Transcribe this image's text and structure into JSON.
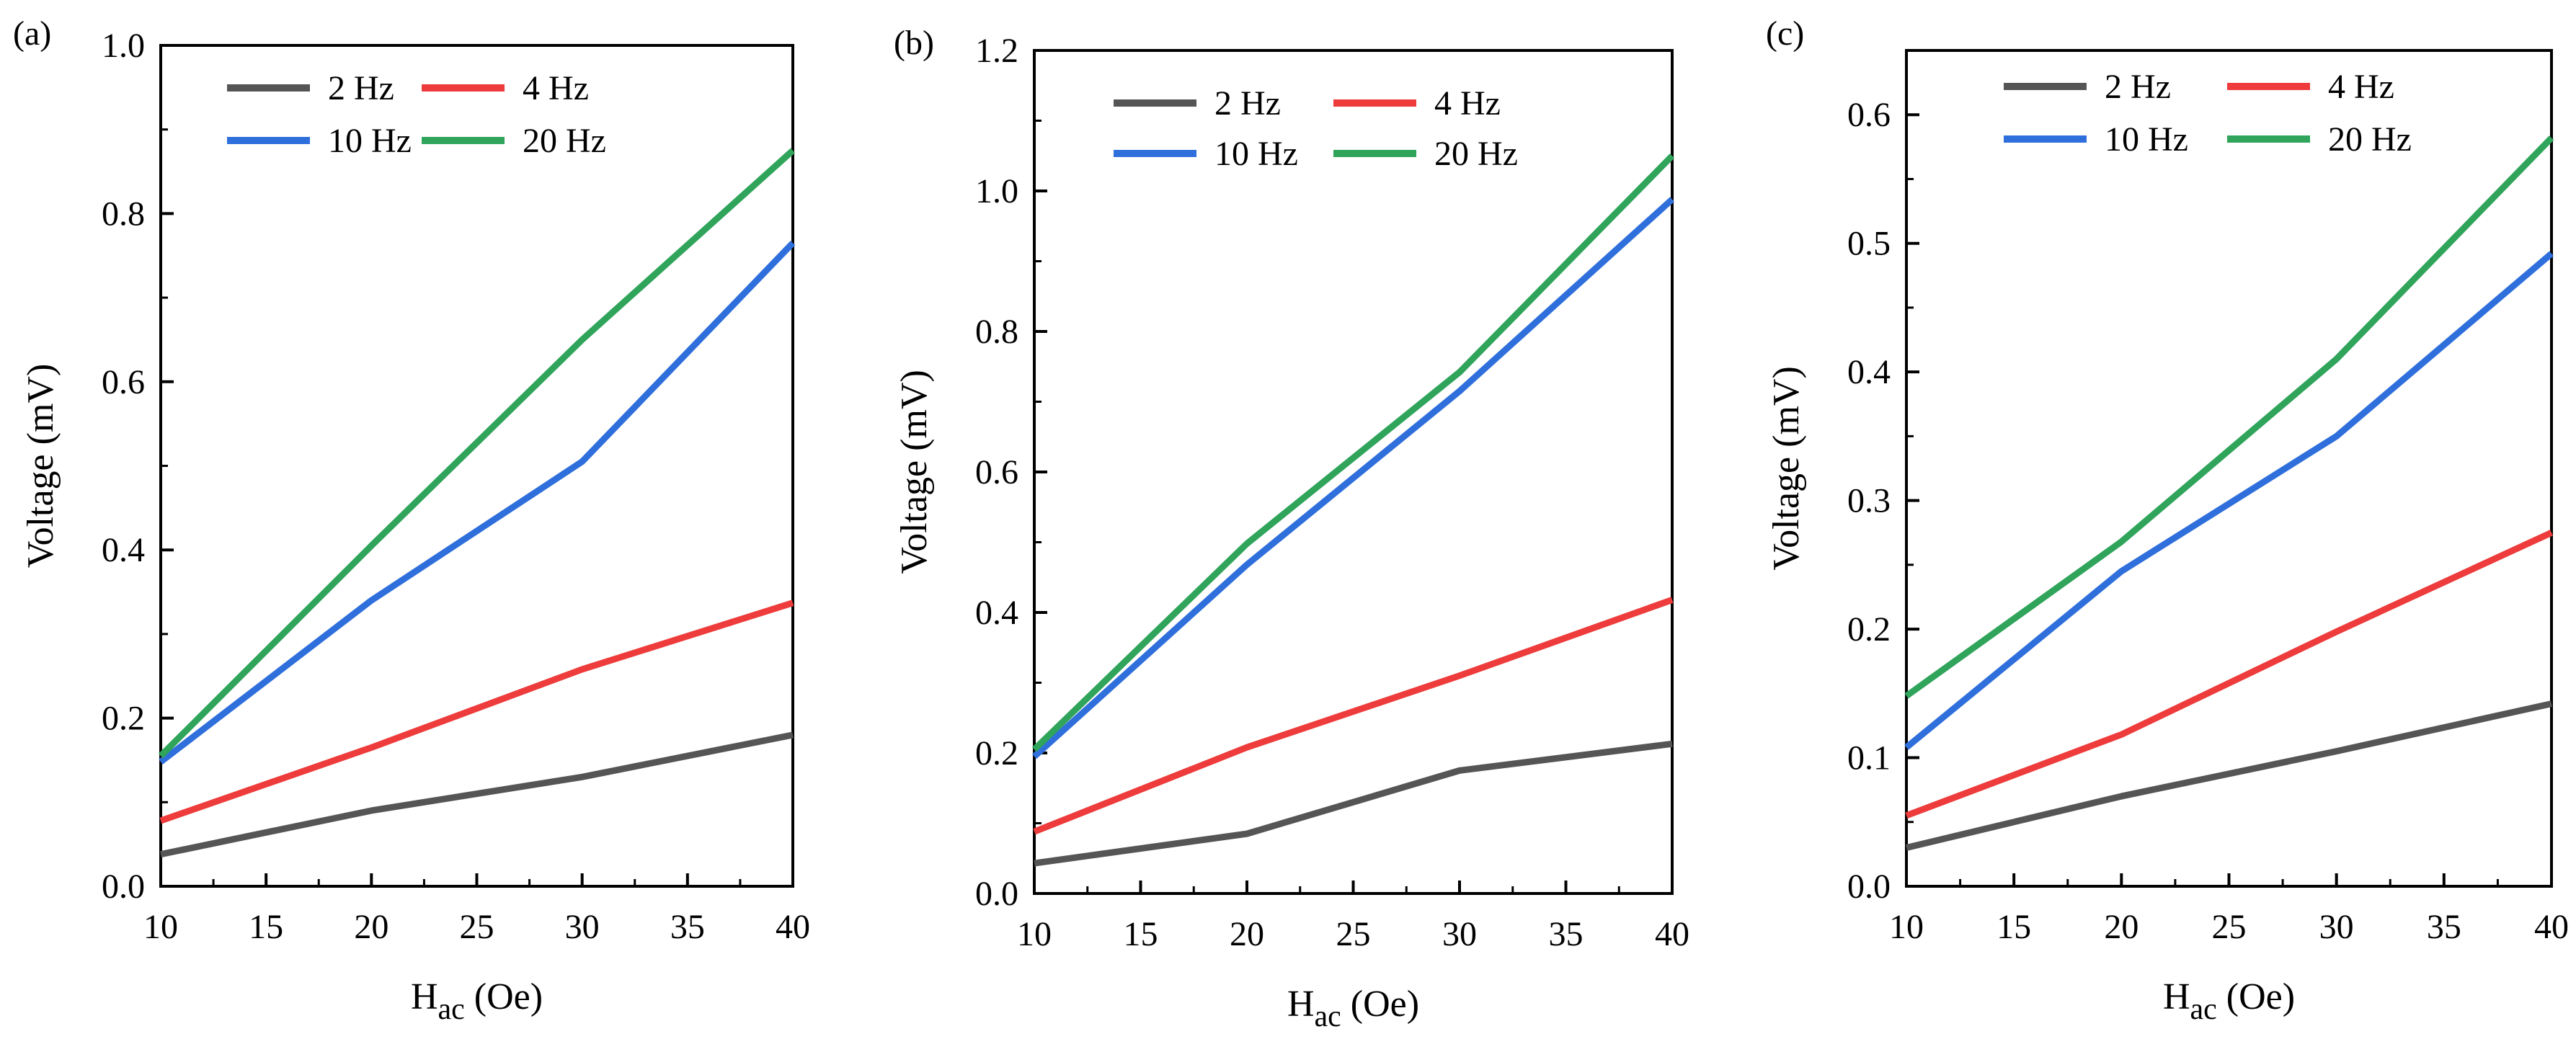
{
  "colors": {
    "2 Hz": "#555555",
    "4 Hz": "#ee3b3b",
    "10 Hz": "#2f6fdc",
    "20 Hz": "#2fa45a",
    "axis": "#000000"
  },
  "chart_data": [
    {
      "panel": "(a)",
      "type": "line",
      "xlabel": "H",
      "xlabel_sub": "ac",
      "xlabel_unit": " (Oe)",
      "ylabel": "Voltage (mV)",
      "xlim": [
        10,
        40
      ],
      "ylim": [
        0,
        1.0
      ],
      "xticks": [
        10,
        15,
        20,
        25,
        30,
        35,
        40
      ],
      "yticks": [
        0.0,
        0.2,
        0.4,
        0.6,
        0.8,
        1.0
      ],
      "ytick_labels": [
        "0.0",
        "0.2",
        "0.4",
        "0.6",
        "0.8",
        "1.0"
      ],
      "legend_position": "top-left",
      "series": [
        {
          "name": "2 Hz",
          "x": [
            10,
            20,
            30,
            40
          ],
          "values": [
            0.038,
            0.09,
            0.13,
            0.18
          ]
        },
        {
          "name": "4 Hz",
          "x": [
            10,
            20,
            30,
            40
          ],
          "values": [
            0.078,
            0.165,
            0.258,
            0.337
          ]
        },
        {
          "name": "10 Hz",
          "x": [
            10,
            20,
            30,
            40
          ],
          "values": [
            0.148,
            0.34,
            0.505,
            0.765
          ]
        },
        {
          "name": "20 Hz",
          "x": [
            10,
            20,
            30,
            40
          ],
          "values": [
            0.155,
            0.405,
            0.65,
            0.875
          ]
        }
      ]
    },
    {
      "panel": "(b)",
      "type": "line",
      "xlabel": "H",
      "xlabel_sub": "ac",
      "xlabel_unit": " (Oe)",
      "ylabel": "Voltage (mV)",
      "xlim": [
        10,
        40
      ],
      "ylim": [
        0,
        1.2
      ],
      "xticks": [
        10,
        15,
        20,
        25,
        30,
        35,
        40
      ],
      "yticks": [
        0.0,
        0.2,
        0.4,
        0.6,
        0.8,
        1.0,
        1.2
      ],
      "ytick_labels": [
        "0.0",
        "0.2",
        "0.4",
        "0.6",
        "0.8",
        "1.0",
        "1.2"
      ],
      "legend_position": "top-left",
      "series": [
        {
          "name": "2 Hz",
          "x": [
            10,
            20,
            30,
            40
          ],
          "values": [
            0.043,
            0.085,
            0.175,
            0.213
          ]
        },
        {
          "name": "4 Hz",
          "x": [
            10,
            20,
            30,
            40
          ],
          "values": [
            0.088,
            0.208,
            0.31,
            0.418
          ]
        },
        {
          "name": "10 Hz",
          "x": [
            10,
            20,
            30,
            40
          ],
          "values": [
            0.195,
            0.468,
            0.715,
            0.988
          ]
        },
        {
          "name": "20 Hz",
          "x": [
            10,
            20,
            30,
            40
          ],
          "values": [
            0.205,
            0.498,
            0.742,
            1.05
          ]
        }
      ]
    },
    {
      "panel": "(c)",
      "type": "line",
      "xlabel": "H",
      "xlabel_sub": "ac",
      "xlabel_unit": " (Oe)",
      "ylabel": "Voltage (mV)",
      "xlim": [
        10,
        40
      ],
      "ylim": [
        0,
        0.65
      ],
      "xticks": [
        10,
        15,
        20,
        25,
        30,
        35,
        40
      ],
      "yticks": [
        0.0,
        0.1,
        0.2,
        0.3,
        0.4,
        0.5,
        0.6
      ],
      "ytick_labels": [
        "0.0",
        "0.1",
        "0.2",
        "0.3",
        "0.4",
        "0.5",
        "0.6"
      ],
      "legend_position": "top-left",
      "series": [
        {
          "name": "2 Hz",
          "x": [
            10,
            20,
            30,
            40
          ],
          "values": [
            0.03,
            0.07,
            0.105,
            0.142
          ]
        },
        {
          "name": "4 Hz",
          "x": [
            10,
            20,
            30,
            40
          ],
          "values": [
            0.055,
            0.118,
            0.198,
            0.275
          ]
        },
        {
          "name": "10 Hz",
          "x": [
            10,
            20,
            30,
            40
          ],
          "values": [
            0.108,
            0.245,
            0.35,
            0.492
          ]
        },
        {
          "name": "20 Hz",
          "x": [
            10,
            20,
            30,
            40
          ],
          "values": [
            0.148,
            0.268,
            0.41,
            0.582
          ]
        }
      ]
    }
  ]
}
